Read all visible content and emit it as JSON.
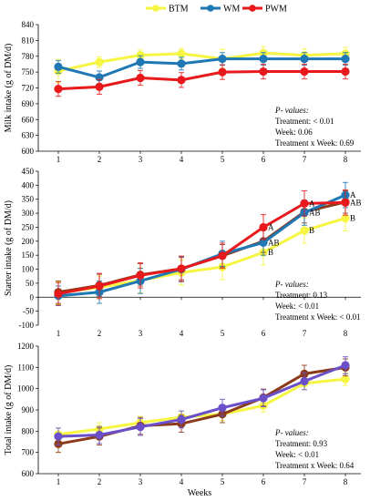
{
  "colors": {
    "BTM": "#f5f542",
    "WM": "#1f77b4",
    "PWM": "#e8191c",
    "BTM_starter": "#f5f542",
    "brown": "#8b3a1a",
    "purple": "#6a4fc8",
    "axis": "#000000"
  },
  "legend": {
    "items": [
      {
        "name": "BTM",
        "color": "#f5f542"
      },
      {
        "name": "WM",
        "color": "#1f77b4"
      },
      {
        "name": "PWM",
        "color": "#e8191c"
      }
    ]
  },
  "chart_data": [
    {
      "type": "line",
      "ylabel": "Milk intake (g of DM/d)",
      "xlabel": "",
      "ylim": [
        600,
        840
      ],
      "yticks": [
        600,
        630,
        660,
        690,
        720,
        750,
        780,
        810,
        840
      ],
      "x": [
        1,
        2,
        3,
        4,
        5,
        6,
        7,
        8
      ],
      "series": [
        {
          "name": "BTM",
          "color": "#f5f542",
          "values": [
            752,
            769,
            782,
            785,
            775,
            786,
            782,
            785
          ],
          "err": [
            22,
            10,
            10,
            10,
            18,
            12,
            12,
            12
          ]
        },
        {
          "name": "WM",
          "color": "#1f77b4",
          "values": [
            760,
            740,
            769,
            766,
            775,
            775,
            775,
            775
          ],
          "err": [
            12,
            12,
            12,
            12,
            12,
            12,
            12,
            12
          ]
        },
        {
          "name": "PWM",
          "color": "#e8191c",
          "values": [
            718,
            722,
            739,
            735,
            750,
            751,
            751,
            751
          ],
          "err": [
            14,
            14,
            14,
            14,
            14,
            14,
            14,
            14
          ]
        }
      ],
      "pvalues": {
        "title": "P- values:",
        "lines": [
          "Treatment: < 0.01",
          "Week: 0.06",
          "Treatment x Week: 0.69"
        ]
      },
      "letters": []
    },
    {
      "type": "line",
      "ylabel": "Starter intake (g of DM/d)",
      "xlabel": "",
      "ylim": [
        -100,
        450
      ],
      "yticks": [
        -100,
        -50,
        0,
        50,
        100,
        150,
        200,
        250,
        300,
        350,
        400,
        450
      ],
      "x": [
        1,
        2,
        3,
        4,
        5,
        6,
        7,
        8
      ],
      "series": [
        {
          "name": "BTM",
          "color": "#f5f542",
          "values": [
            15,
            35,
            60,
            88,
            108,
            160,
            238,
            282
          ],
          "err": [
            40,
            40,
            45,
            45,
            45,
            45,
            45,
            45
          ]
        },
        {
          "name": "",
          "color": "#8b3a1a",
          "values": [
            18,
            42,
            80,
            102,
            148,
            200,
            305,
            340
          ],
          "err": [
            40,
            40,
            40,
            40,
            40,
            40,
            40,
            40
          ]
        },
        {
          "name": "WM",
          "color": "#1f77b4",
          "values": [
            5,
            18,
            58,
            100,
            155,
            195,
            302,
            365
          ],
          "err": [
            35,
            40,
            45,
            45,
            45,
            45,
            45,
            45
          ]
        },
        {
          "name": "PWM",
          "color": "#e8191c",
          "values": [
            12,
            40,
            78,
            102,
            148,
            250,
            335,
            338
          ],
          "err": [
            40,
            45,
            45,
            45,
            45,
            45,
            45,
            45
          ]
        }
      ],
      "pvalues": {
        "title": "P- values:",
        "lines": [
          "Treatment: 0.13",
          "Week: < 0.01",
          "Treatment x Week: < 0.01"
        ]
      },
      "letters": [
        {
          "x": 6,
          "y": 250,
          "text": "A"
        },
        {
          "x": 6,
          "y": 195,
          "text": "AB"
        },
        {
          "x": 6,
          "y": 160,
          "text": "B"
        },
        {
          "x": 7,
          "y": 335,
          "text": "A"
        },
        {
          "x": 7,
          "y": 302,
          "text": "AB"
        },
        {
          "x": 7,
          "y": 238,
          "text": "B"
        },
        {
          "x": 8,
          "y": 365,
          "text": "A"
        },
        {
          "x": 8,
          "y": 338,
          "text": "AB"
        },
        {
          "x": 8,
          "y": 282,
          "text": "B"
        }
      ]
    },
    {
      "type": "line",
      "ylabel": "Total intake (g of DM/d)",
      "xlabel": "Weeks",
      "ylim": [
        600,
        1200
      ],
      "yticks": [
        600,
        700,
        800,
        900,
        1000,
        1100,
        1200
      ],
      "x": [
        1,
        2,
        3,
        4,
        5,
        6,
        7,
        8
      ],
      "series": [
        {
          "name": "BTM",
          "color": "#f5f542",
          "values": [
            785,
            810,
            840,
            866,
            880,
            920,
            1025,
            1045
          ],
          "err": [
            30,
            30,
            30,
            30,
            30,
            30,
            30,
            30
          ]
        },
        {
          "name": "",
          "color": "#8b3a1a",
          "values": [
            740,
            775,
            825,
            835,
            880,
            958,
            1070,
            1100
          ],
          "err": [
            40,
            40,
            40,
            40,
            40,
            40,
            40,
            40
          ]
        },
        {
          "name": "",
          "color": "#6a4fc8",
          "values": [
            775,
            782,
            820,
            855,
            910,
            955,
            1035,
            1110
          ],
          "err": [
            40,
            40,
            40,
            40,
            40,
            40,
            40,
            40
          ]
        }
      ],
      "pvalues": {
        "title": "P- values:",
        "lines": [
          "Treatment: 0.93",
          "Week: < 0.01",
          "Treatment x Week: 0.64"
        ]
      },
      "letters": []
    }
  ]
}
